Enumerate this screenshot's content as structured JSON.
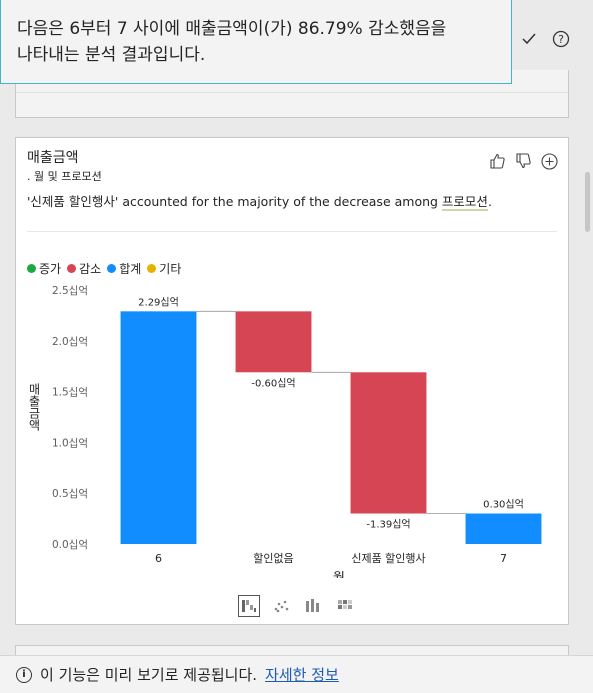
{
  "tooltip": {
    "text_line1": "다음은 6부터 7 사이에 매출금액이(가) 86.79% 감소했음을",
    "text_line2": "나타내는 분석 결과입니다."
  },
  "top_icons": [
    "check-icon",
    "help-icon"
  ],
  "card": {
    "title": "매출금액",
    "subtitle": ". 월 및 프로모션",
    "narrative_prefix": "'신제품 할인행사' accounted for the majority of the decrease among ",
    "narrative_highlight": "프로모션",
    "narrative_suffix": "."
  },
  "legend": [
    {
      "label": "증가",
      "color": "#1aab40"
    },
    {
      "label": "감소",
      "color": "#d64554"
    },
    {
      "label": "합계",
      "color": "#118dff"
    },
    {
      "label": "기타",
      "color": "#e6b200"
    }
  ],
  "chart_data": {
    "type": "waterfall",
    "categories": [
      "6",
      "할인없음",
      "신제품 할인행사",
      "7"
    ],
    "steps": [
      {
        "category": "6",
        "kind": "total",
        "value": 2.29,
        "label": "2.29십억"
      },
      {
        "category": "할인없음",
        "kind": "decrease",
        "value": -0.6,
        "label": "-0.60십억"
      },
      {
        "category": "신제품 할인행사",
        "kind": "decrease",
        "value": -1.39,
        "label": "-1.39십억"
      },
      {
        "category": "7",
        "kind": "total",
        "value": 0.3,
        "label": "0.30십억"
      }
    ],
    "yticks": [
      "0.0십억",
      "0.5십억",
      "1.0십억",
      "1.5십억",
      "2.0십억",
      "2.5십억"
    ],
    "ylim": [
      0,
      2.5
    ],
    "xlabel": "월",
    "ylabel": "매출금액",
    "colors": {
      "total": "#118dff",
      "decrease": "#d64554",
      "increase": "#1aab40"
    }
  },
  "footer": {
    "text": "이 기능은 미리 보기로 제공됩니다.",
    "link": "자세한 정보"
  }
}
